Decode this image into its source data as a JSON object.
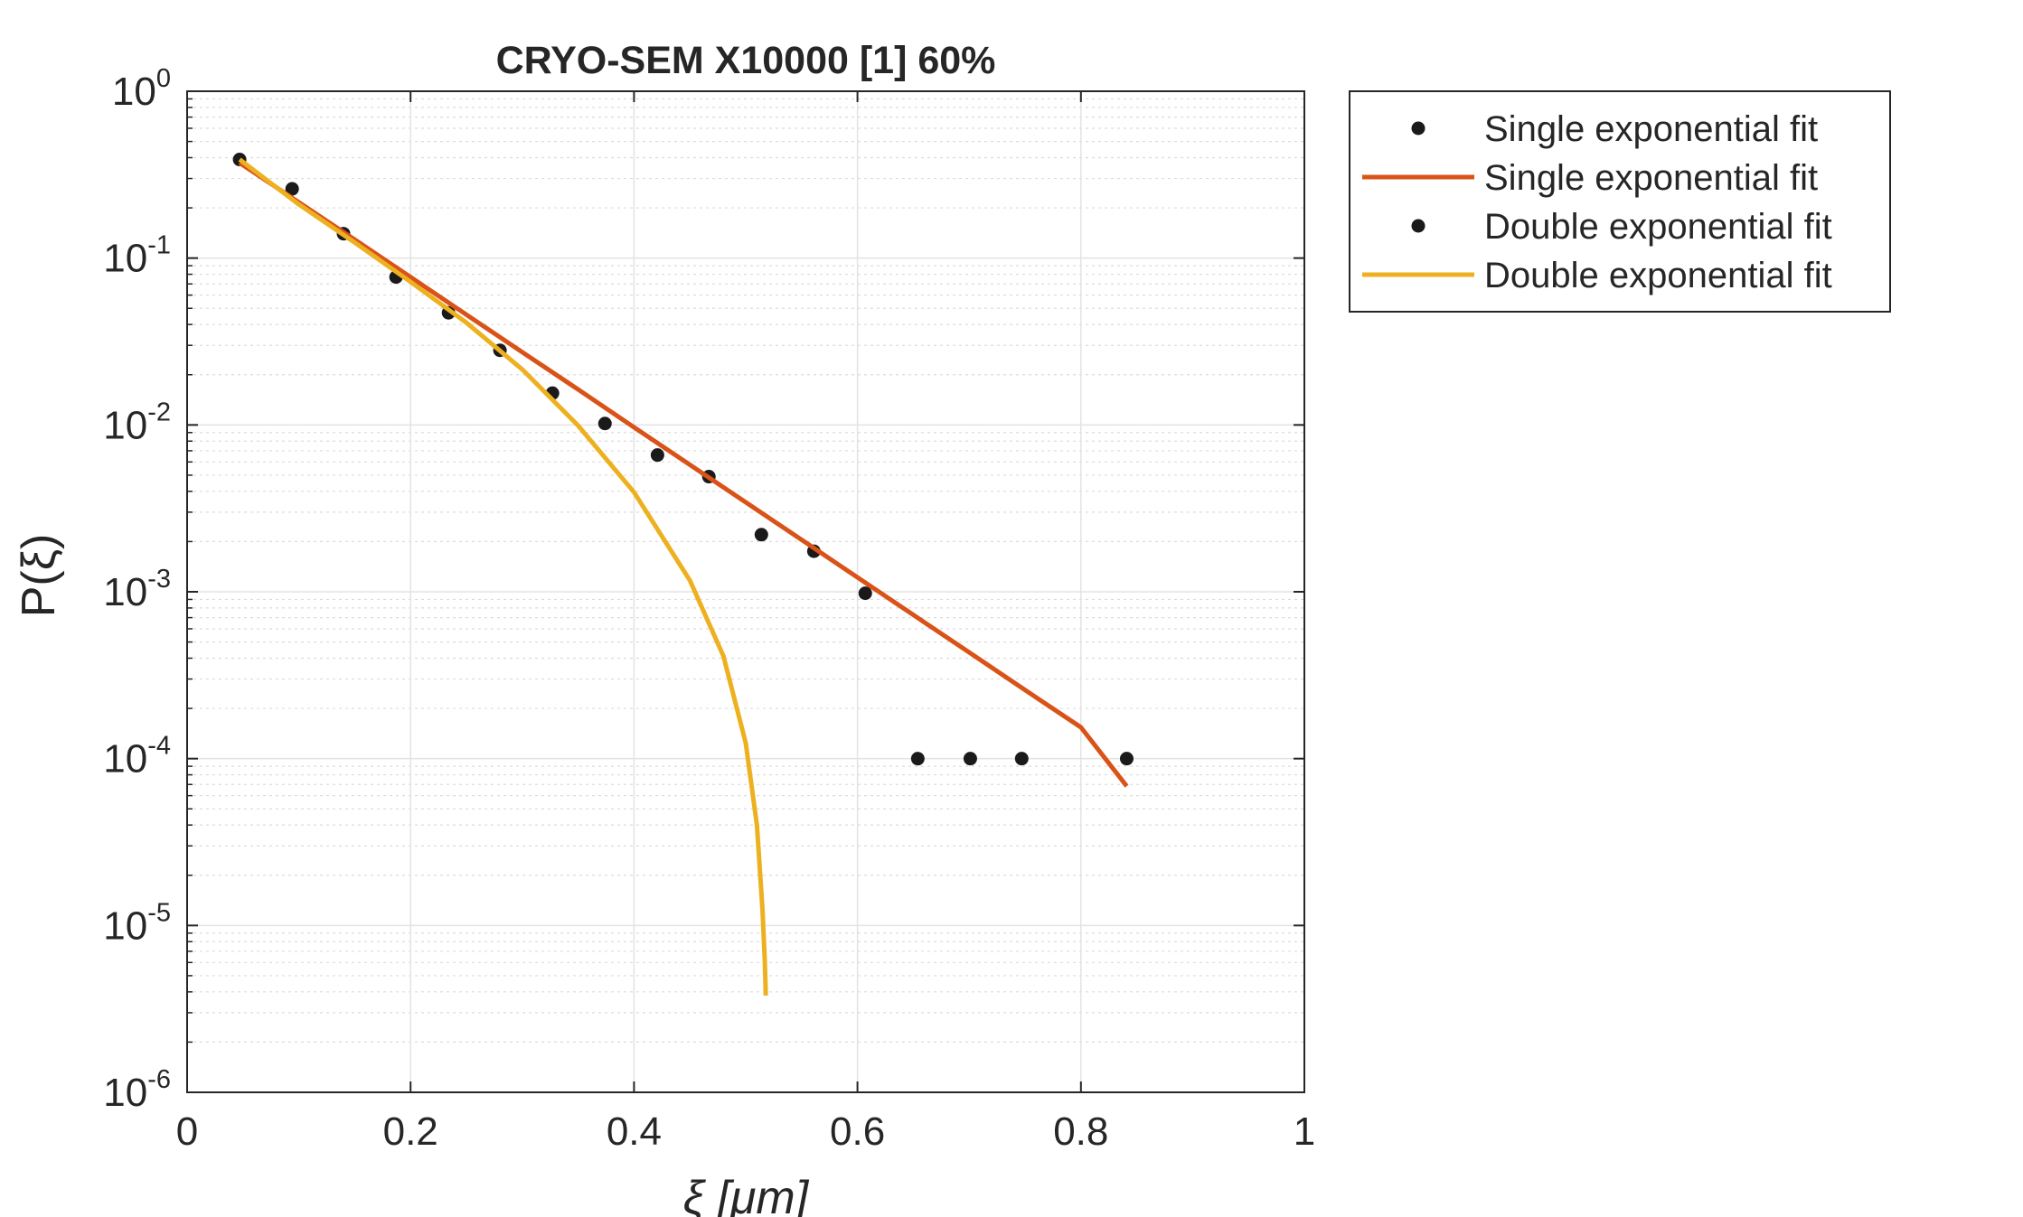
{
  "chart_data": {
    "type": "scatter",
    "title": "CRYO-SEM X10000 [1] 60%",
    "xlabel": "ξ  [μm]",
    "ylabel": "P(ξ)",
    "xlim": [
      0,
      1
    ],
    "ylim": [
      1e-06,
      1
    ],
    "yscale": "log",
    "grid": true,
    "minor_grid": true,
    "legend_position": "outside-top-right",
    "x_ticks": [
      "0",
      "0.2",
      "0.4",
      "0.6",
      "0.8",
      "1"
    ],
    "y_ticks": [
      {
        "base": "10",
        "exp": "0"
      },
      {
        "base": "10",
        "exp": "-1"
      },
      {
        "base": "10",
        "exp": "-2"
      },
      {
        "base": "10",
        "exp": "-3"
      },
      {
        "base": "10",
        "exp": "-4"
      },
      {
        "base": "10",
        "exp": "-5"
      },
      {
        "base": "10",
        "exp": "-6"
      }
    ],
    "series": [
      {
        "name": "Single exponential fit",
        "style": "markers",
        "color": "#000000",
        "x": [
          0.047,
          0.094,
          0.14,
          0.187,
          0.234,
          0.28,
          0.327,
          0.374,
          0.421,
          0.467,
          0.514,
          0.561,
          0.607,
          0.654,
          0.701,
          0.747,
          0.841
        ],
        "y": [
          0.39,
          0.26,
          0.14,
          0.077,
          0.047,
          0.028,
          0.0155,
          0.0102,
          0.0066,
          0.0049,
          0.0022,
          0.00175,
          0.00098,
          0.0001,
          0.0001,
          0.0001,
          0.0001
        ]
      },
      {
        "name": "Single exponential fit",
        "style": "line",
        "color": "#D95319",
        "x": [
          0.047,
          0.1,
          0.15,
          0.2,
          0.25,
          0.3,
          0.35,
          0.4,
          0.45,
          0.5,
          0.55,
          0.6,
          0.65,
          0.7,
          0.75,
          0.8,
          0.841
        ],
        "y": [
          0.372,
          0.216,
          0.129,
          0.0769,
          0.0458,
          0.0273,
          0.0163,
          0.00969,
          0.00577,
          0.00344,
          0.00205,
          0.00122,
          0.000727,
          0.000433,
          0.000258,
          0.000154,
          6.83e-05
        ]
      },
      {
        "name": "Double exponential fit",
        "style": "markers",
        "color": "#000000",
        "x": [],
        "y": []
      },
      {
        "name": "Double exponential fit",
        "style": "line",
        "color": "#EDB120",
        "x": [
          0.047,
          0.1,
          0.15,
          0.2,
          0.25,
          0.3,
          0.35,
          0.4,
          0.45,
          0.48,
          0.5,
          0.51,
          0.515,
          0.517,
          0.518
        ],
        "y": [
          0.39,
          0.21,
          0.124,
          0.072,
          0.041,
          0.0215,
          0.0099,
          0.00395,
          0.00117,
          0.000412,
          0.000124,
          3.98e-05,
          1.25e-05,
          6.3e-06,
          3.8e-06
        ]
      }
    ]
  }
}
